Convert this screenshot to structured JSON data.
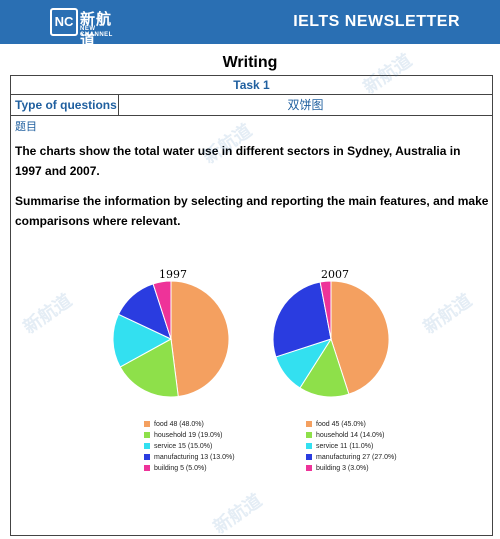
{
  "header": {
    "logo_mark": "NC",
    "logo_cn": "新航道",
    "logo_en": "NEW CHANNEL",
    "title": "IELTS NEWSLETTER",
    "bg_color": "#2a6fb3"
  },
  "page": {
    "heading": "Writing",
    "task": "Task 1",
    "type_label": "Type of questions",
    "type_value": "双饼图",
    "topic_label": "题目",
    "prompt1": "The charts show the total water use in different sectors in Sydney, Australia in 1997 and 2007.",
    "prompt2": "Summarise the information by selecting and reporting the main features, and make comparisons where relevant."
  },
  "chart_data": [
    {
      "type": "pie",
      "title": "1997",
      "slices": [
        {
          "label": "food",
          "value": 48,
          "pct": "48.0%",
          "color": "#f4a060"
        },
        {
          "label": "household",
          "value": 19,
          "pct": "19.0%",
          "color": "#8ee04a"
        },
        {
          "label": "service",
          "value": 15,
          "pct": "15.0%",
          "color": "#33e0f0"
        },
        {
          "label": "manufacturing",
          "value": 13,
          "pct": "13.0%",
          "color": "#2a3ce0"
        },
        {
          "label": "building",
          "value": 5,
          "pct": "5.0%",
          "color": "#ee3399"
        }
      ]
    },
    {
      "type": "pie",
      "title": "2007",
      "slices": [
        {
          "label": "food",
          "value": 45,
          "pct": "45.0%",
          "color": "#f4a060"
        },
        {
          "label": "household",
          "value": 14,
          "pct": "14.0%",
          "color": "#8ee04a"
        },
        {
          "label": "service",
          "value": 11,
          "pct": "11.0%",
          "color": "#33e0f0"
        },
        {
          "label": "manufacturing",
          "value": 27,
          "pct": "27.0%",
          "color": "#2a3ce0"
        },
        {
          "label": "building",
          "value": 3,
          "pct": "3.0%",
          "color": "#ee3399"
        }
      ]
    }
  ]
}
